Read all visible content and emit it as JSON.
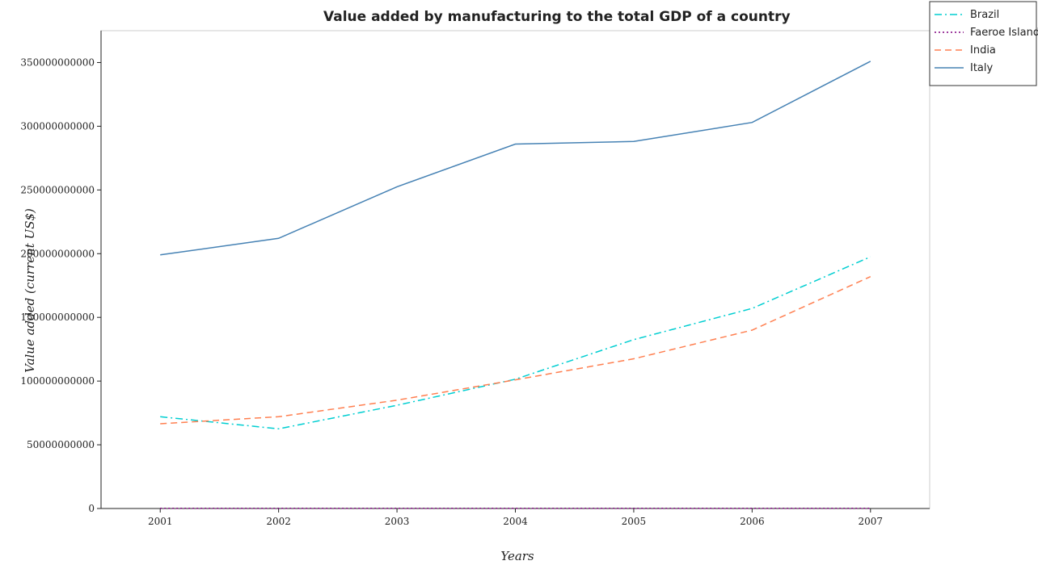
{
  "chart_data": {
    "type": "line",
    "title": "Value added by manufacturing to the total GDP of a country",
    "xlabel": "Years",
    "ylabel": "Value added (current US$)",
    "categories": [
      "2001",
      "2002",
      "2003",
      "2004",
      "2005",
      "2006",
      "2007"
    ],
    "ylim": [
      0,
      375000000000
    ],
    "yticks": [
      0,
      50000000000,
      100000000000,
      150000000000,
      200000000000,
      250000000000,
      300000000000,
      350000000000
    ],
    "ytick_labels": [
      "0",
      "50000000000",
      "100000000000",
      "150000000000",
      "200000000000",
      "250000000000",
      "300000000000",
      "350000000000"
    ],
    "legend_position": "top-right",
    "grid": false,
    "series": [
      {
        "name": "Brazil",
        "color": "#00CED1",
        "dash": "dash-dot",
        "values": [
          72000000000,
          62500000000,
          81000000000,
          101500000000,
          132500000000,
          157000000000,
          197500000000
        ]
      },
      {
        "name": "Faeroe Islands",
        "color": "#800080",
        "dash": "dotted",
        "values": [
          100000000,
          110000000,
          130000000,
          140000000,
          140000000,
          150000000,
          170000000
        ]
      },
      {
        "name": "India",
        "color": "#FF7F50",
        "dash": "dashed",
        "values": [
          66500000000,
          72000000000,
          85000000000,
          101000000000,
          117500000000,
          140000000000,
          182000000000
        ]
      },
      {
        "name": "Italy",
        "color": "#4682B4",
        "dash": "solid",
        "values": [
          199000000000,
          212000000000,
          252500000000,
          286000000000,
          288000000000,
          303000000000,
          351000000000
        ]
      }
    ]
  }
}
